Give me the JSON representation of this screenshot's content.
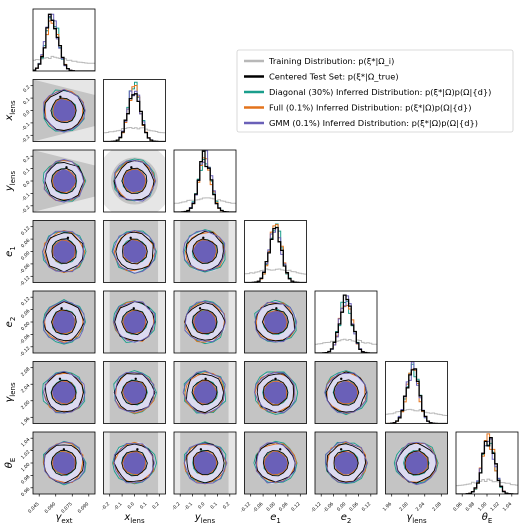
{
  "chart_data": {
    "type": "scatter",
    "title": "",
    "subtype": "corner-plot",
    "parameters": [
      {
        "key": "gamma_ext",
        "label": "γ_ext",
        "ticks": [
          "0.045",
          "0.060",
          "0.075",
          "0.090"
        ],
        "range": [
          0.04,
          0.095
        ],
        "hist_peak": 0.057
      },
      {
        "key": "x_lens",
        "label": "x_lens",
        "ticks": [
          "-0.2",
          "-0.1",
          "0.0",
          "0.1",
          "0.2"
        ],
        "range": [
          -0.22,
          0.22
        ],
        "hist_peak": 0.0
      },
      {
        "key": "y_lens",
        "label": "y_lens",
        "ticks": [
          "-0.2",
          "-0.1",
          "0.0",
          "0.1",
          "0.2"
        ],
        "range": [
          -0.22,
          0.22
        ],
        "hist_peak": 0.0
      },
      {
        "key": "e1",
        "label": "e_1",
        "ticks": [
          "-0.12",
          "-0.06",
          "0.00",
          "0.06",
          "0.12"
        ],
        "range": [
          -0.13,
          0.13
        ],
        "hist_peak": 0.0
      },
      {
        "key": "e2",
        "label": "e_2",
        "ticks": [
          "-0.12",
          "-0.06",
          "0.00",
          "0.06",
          "0.12"
        ],
        "range": [
          -0.13,
          0.13
        ],
        "hist_peak": 0.0
      },
      {
        "key": "gamma_lens",
        "label": "γ_lens",
        "ticks": [
          "1.96",
          "2.00",
          "2.04",
          "2.08"
        ],
        "range": [
          1.94,
          2.1
        ],
        "hist_peak": 2.01
      },
      {
        "key": "theta_E",
        "label": "θ_E",
        "ticks": [
          "0.96",
          "0.98",
          "1.00",
          "1.02",
          "1.04"
        ],
        "range": [
          0.95,
          1.045
        ],
        "hist_peak": 1.0
      }
    ],
    "y_ticks": {
      "x_lens": [
        "-0.2",
        "-0.1",
        "0.0",
        "0.1",
        "0.2"
      ],
      "y_lens": [
        "-0.2",
        "-0.1",
        "0.0",
        "0.1",
        "0.2"
      ],
      "e1": [
        "-0.12",
        "-0.06",
        "0.00",
        "0.06",
        "0.12"
      ],
      "e2": [
        "-0.12",
        "-0.06",
        "0.00",
        "0.06",
        "0.12"
      ],
      "gamma_lens": [
        "1.96",
        "2.00",
        "2.04",
        "2.08"
      ],
      "theta_E": [
        "0.96",
        "0.98",
        "1.00",
        "1.02",
        "1.04"
      ]
    },
    "series": [
      {
        "name": "Training Distribution: p(ξ*|Ω_i)",
        "color": "#b8b8b8"
      },
      {
        "name": "Centered Test Set: p(ξ*|Ω_true)",
        "color": "#000000"
      },
      {
        "name": "Diagonal (30%) Inferred Distribution: p(ξ*|Ω)p(Ω|{d})",
        "color": "#1a9e8c"
      },
      {
        "name": "Full (0.1%) Inferred Distribution: p(ξ*|Ω)p(Ω|{d})",
        "color": "#e3731c"
      },
      {
        "name": "GMM (0.1%) Inferred Distribution: p(ξ*|Ω)p(Ω|{d})",
        "color": "#6a60b8"
      }
    ],
    "legend_position": "top-right",
    "grid": false
  }
}
